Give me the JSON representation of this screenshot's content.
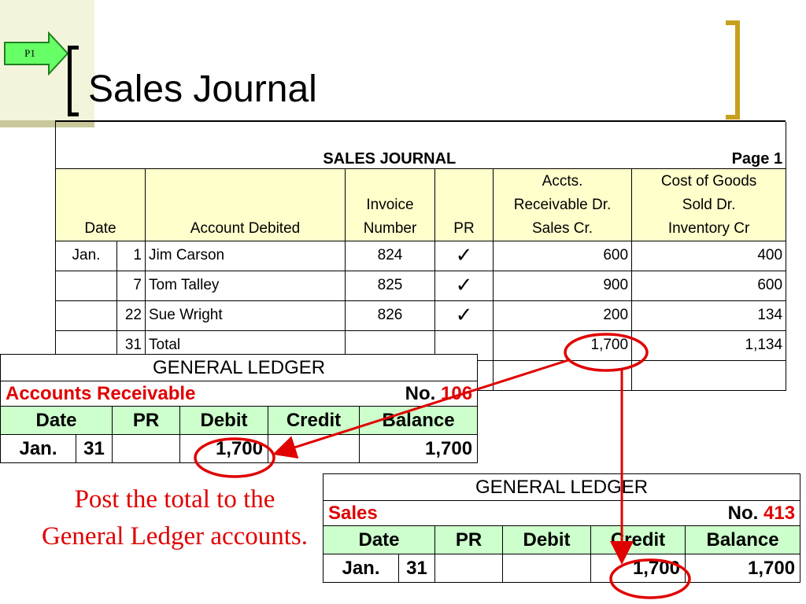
{
  "slide": {
    "marker": "P1",
    "title": "Sales Journal"
  },
  "sales_journal": {
    "title": "SALES JOURNAL",
    "page": "Page 1",
    "headers": {
      "date": "Date",
      "account": "Account Debited",
      "invoice_1": "Invoice",
      "invoice_2": "Number",
      "pr": "PR",
      "ar_1": "Accts.",
      "ar_2": "Receivable Dr.",
      "ar_3": "Sales Cr.",
      "cogs_1": "Cost of Goods",
      "cogs_2": "Sold Dr.",
      "cogs_3": "Inventory Cr"
    },
    "rows": [
      {
        "month": "Jan.",
        "day": "1",
        "account": "Jim Carson",
        "invoice": "824",
        "pr": "✓",
        "ar": "600",
        "cogs": "400"
      },
      {
        "month": "",
        "day": "7",
        "account": "Tom Talley",
        "invoice": "825",
        "pr": "✓",
        "ar": "900",
        "cogs": "600"
      },
      {
        "month": "",
        "day": "22",
        "account": "Sue Wright",
        "invoice": "826",
        "pr": "✓",
        "ar": "200",
        "cogs": "134"
      },
      {
        "month": "",
        "day": "31",
        "account": "Total",
        "invoice": "",
        "pr": "",
        "ar": "1,700",
        "cogs": "1,134"
      }
    ]
  },
  "ledger_ar": {
    "title": "GENERAL LEDGER",
    "account": "Accounts Receivable",
    "no_label": "No.",
    "no_value": "106",
    "columns": [
      "Date",
      "PR",
      "Debit",
      "Credit",
      "Balance"
    ],
    "row": {
      "month": "Jan.",
      "day": "31",
      "pr": "",
      "debit": "1,700",
      "credit": "",
      "balance": "1,700"
    }
  },
  "ledger_sales": {
    "title": "GENERAL LEDGER",
    "account": "Sales",
    "no_label": "No.",
    "no_value": "413",
    "columns": [
      "Date",
      "PR",
      "Debit",
      "Credit",
      "Balance"
    ],
    "row": {
      "month": "Jan.",
      "day": "31",
      "pr": "",
      "debit": "",
      "credit": "1,700",
      "balance": "1,700"
    }
  },
  "note": "Post the total to the General Ledger accounts.",
  "colors": {
    "header_fill": "#ffffcc",
    "ledger_header_fill": "#ccffcc",
    "accent": "#e00000",
    "bracket": "#c8a020"
  }
}
